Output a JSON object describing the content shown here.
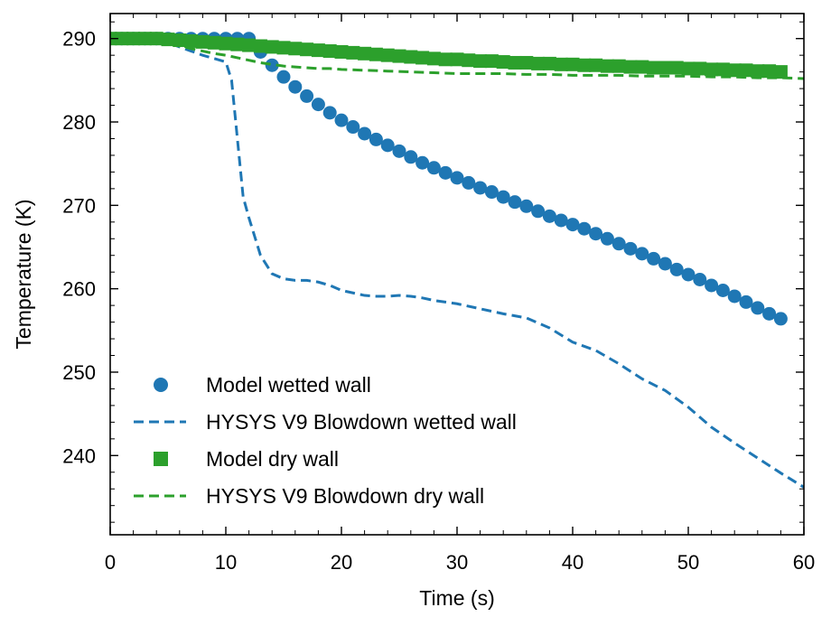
{
  "chart_data": {
    "type": "line",
    "title": "",
    "xlabel": "Time (s)",
    "ylabel": "Temperature (K)",
    "xlim": [
      0,
      60
    ],
    "ylim": [
      230.5,
      293
    ],
    "xticks": [
      0,
      10,
      20,
      30,
      40,
      50,
      60
    ],
    "xtick_labels": [
      "0",
      "10",
      "20",
      "30",
      "40",
      "50",
      "60"
    ],
    "yticks": [
      240,
      250,
      260,
      270,
      280,
      290
    ],
    "ytick_labels": [
      "240",
      "250",
      "260",
      "270",
      "280",
      "290"
    ],
    "grid": false,
    "legend_position": "lower-left",
    "series": [
      {
        "name": "Model wetted wall",
        "style": "markers-circle",
        "color": "#1f77b4",
        "x": [
          0,
          1,
          2,
          3,
          4,
          5,
          6,
          7,
          8,
          9,
          10,
          11,
          12,
          13,
          14,
          15,
          16,
          17,
          18,
          19,
          20,
          21,
          22,
          23,
          24,
          25,
          26,
          27,
          28,
          29,
          30,
          31,
          32,
          33,
          34,
          35,
          36,
          37,
          38,
          39,
          40,
          41,
          42,
          43,
          44,
          45,
          46,
          47,
          48,
          49,
          50,
          51,
          52,
          53,
          54,
          55,
          56,
          57,
          58
        ],
        "y": [
          290,
          290,
          290,
          290,
          290,
          290,
          290,
          290,
          290,
          290,
          290,
          290,
          290,
          288.4,
          286.8,
          285.4,
          284.2,
          283.1,
          282.1,
          281.1,
          280.2,
          279.4,
          278.6,
          277.9,
          277.2,
          276.5,
          275.8,
          275.1,
          274.5,
          273.9,
          273.3,
          272.7,
          272.1,
          271.6,
          271.0,
          270.4,
          269.9,
          269.3,
          268.7,
          268.2,
          267.7,
          267.2,
          266.6,
          266.0,
          265.4,
          264.8,
          264.2,
          263.6,
          263.0,
          262.3,
          261.7,
          261.1,
          260.4,
          259.8,
          259.1,
          258.4,
          257.7,
          257.0,
          256.4
        ]
      },
      {
        "name": "HYSYS V9 Blowdown wetted wall",
        "style": "dashed",
        "color": "#1f77b4",
        "x": [
          0,
          2,
          4,
          5,
          6,
          7,
          8,
          9,
          10,
          10.5,
          11,
          11.5,
          12,
          13,
          14,
          15,
          16,
          17,
          18,
          19,
          20,
          21,
          22,
          23,
          24,
          25,
          26,
          27,
          28,
          30,
          32,
          34,
          36,
          38,
          40,
          42,
          44,
          46,
          48,
          50,
          52,
          54,
          56,
          58,
          60
        ],
        "y": [
          290,
          290,
          290,
          289.5,
          289,
          288.5,
          288,
          287.6,
          287.2,
          285,
          278,
          271,
          268.5,
          264,
          261.8,
          261.2,
          261,
          261,
          260.8,
          260.4,
          259.8,
          259.5,
          259.2,
          259.1,
          259.1,
          259.2,
          259.1,
          258.9,
          258.6,
          258.2,
          257.6,
          257,
          256.5,
          255.3,
          253.6,
          252.6,
          251,
          249.2,
          247.8,
          245.8,
          243.4,
          241.5,
          239.7,
          237.9,
          236.2
        ]
      },
      {
        "name": "Model dry wall",
        "style": "markers-square",
        "color": "#2ca02c",
        "x": [
          0,
          1,
          2,
          3,
          4,
          5,
          6,
          7,
          8,
          9,
          10,
          11,
          12,
          13,
          14,
          15,
          16,
          17,
          18,
          19,
          20,
          21,
          22,
          23,
          24,
          25,
          26,
          27,
          28,
          29,
          30,
          31,
          32,
          33,
          34,
          35,
          36,
          37,
          38,
          39,
          40,
          41,
          42,
          43,
          44,
          45,
          46,
          47,
          48,
          49,
          50,
          51,
          52,
          53,
          54,
          55,
          56,
          57,
          58
        ],
        "y": [
          290,
          290,
          290,
          290,
          290,
          289.9,
          289.8,
          289.7,
          289.6,
          289.5,
          289.4,
          289.3,
          289.2,
          289.1,
          289.0,
          288.9,
          288.8,
          288.7,
          288.6,
          288.5,
          288.4,
          288.3,
          288.2,
          288.1,
          288.0,
          287.9,
          287.8,
          287.7,
          287.6,
          287.5,
          287.5,
          287.4,
          287.3,
          287.3,
          287.2,
          287.1,
          287.1,
          287.0,
          287.0,
          286.9,
          286.9,
          286.8,
          286.8,
          286.7,
          286.7,
          286.6,
          286.6,
          286.5,
          286.5,
          286.5,
          286.4,
          286.4,
          286.3,
          286.3,
          286.2,
          286.2,
          286.1,
          286.1,
          286.0
        ]
      },
      {
        "name": "HYSYS V9 Blowdown dry wall",
        "style": "dashed",
        "color": "#2ca02c",
        "x": [
          0,
          2,
          4,
          5,
          6,
          7,
          8,
          9,
          10,
          11,
          12,
          13,
          14,
          15,
          16,
          17,
          18,
          19,
          20,
          22,
          24,
          26,
          28,
          30,
          32,
          34,
          36,
          38,
          40,
          42,
          44,
          46,
          48,
          50,
          52,
          54,
          56,
          58,
          60
        ],
        "y": [
          290,
          290,
          290,
          289.5,
          289.1,
          288.8,
          288.5,
          288.2,
          288,
          287.7,
          287.4,
          287.1,
          286.9,
          286.7,
          286.6,
          286.5,
          286.4,
          286.4,
          286.3,
          286.2,
          286.1,
          286.0,
          285.9,
          285.8,
          285.8,
          285.8,
          285.7,
          285.7,
          285.6,
          285.6,
          285.6,
          285.5,
          285.5,
          285.5,
          285.4,
          285.4,
          285.3,
          285.3,
          285.2
        ]
      }
    ]
  }
}
